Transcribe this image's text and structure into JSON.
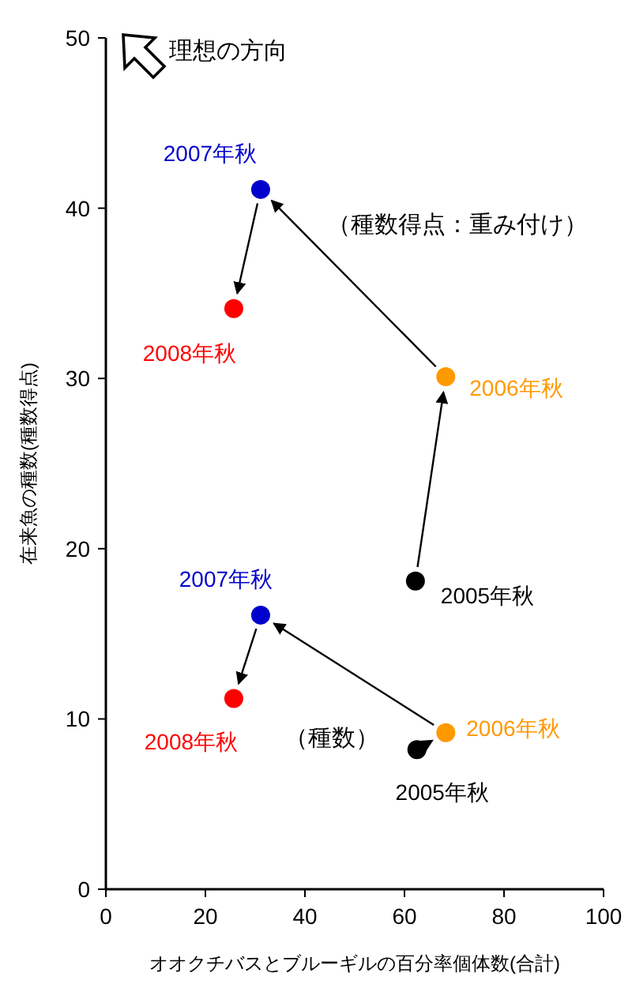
{
  "chart_data": {
    "type": "scatter",
    "xlabel": "オオクチバスとブルーギルの百分率個体数(合計)",
    "ylabel": "在来魚の種数(種数得点)",
    "xlim": [
      0,
      100
    ],
    "xticks": [
      0,
      20,
      40,
      60,
      80,
      100
    ],
    "ylim": [
      0,
      50
    ],
    "yticks": [
      0,
      10,
      20,
      30,
      40,
      50
    ],
    "grid": false,
    "marker": "circle",
    "annotations": [
      "理想の方向",
      "（種数得点：重み付け）",
      "（種数）",
      {
        "text": "2005年秋",
        "x": 62.2,
        "y": 18.1
      },
      {
        "text": "2006年秋",
        "x": 68.3,
        "y": 30.1
      },
      {
        "text": "2007年秋",
        "x": 31.1,
        "y": 41.1
      },
      {
        "text": "2008年秋",
        "x": 25.7,
        "y": 34.1
      },
      {
        "text": "2005年秋",
        "x": 62.5,
        "y": 8.2
      },
      {
        "text": "2006年秋",
        "x": 68.3,
        "y": 9.2
      },
      {
        "text": "2007年秋",
        "x": 31.1,
        "y": 16.1
      },
      {
        "text": "2008年秋",
        "x": 25.7,
        "y": 11.2
      }
    ],
    "series": [
      {
        "x": [
          62.2,
          68.3,
          31.1,
          25.7
        ],
        "values": [
          18.1,
          30.1,
          41.1,
          34.1
        ],
        "colors": [
          "#000000",
          "#ff9900",
          "#0000cc",
          "#ff0000"
        ]
      },
      {
        "x": [
          62.5,
          68.3,
          31.1,
          25.7
        ],
        "values": [
          8.2,
          9.2,
          16.1,
          11.2
        ],
        "colors": [
          "#000000",
          "#ff9900",
          "#0000cc",
          "#ff0000"
        ]
      }
    ]
  }
}
